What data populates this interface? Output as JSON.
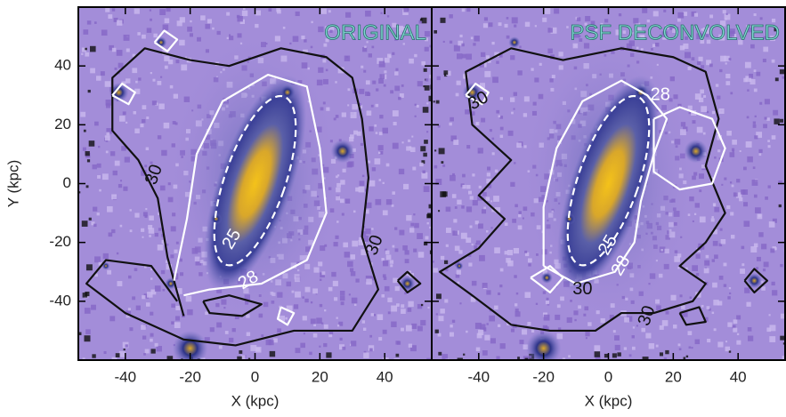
{
  "chart_data": [
    {
      "type": "image",
      "title": "ORIGINAL",
      "xlabel": "X (kpc)",
      "ylabel": "Y (kpc)",
      "xlim": [
        -54.5,
        54.5
      ],
      "ylim": [
        -60,
        60
      ],
      "xticks": [
        -40,
        -20,
        0,
        20,
        40
      ],
      "yticks": [
        -40,
        -20,
        0,
        20,
        40
      ],
      "annotations": [
        "30",
        "25",
        "28",
        "30"
      ]
    },
    {
      "type": "image",
      "title": "PSF DECONVOLVED",
      "xlabel": "X (kpc)",
      "xlim": [
        -54.5,
        54.5
      ],
      "ylim": [
        -60,
        60
      ],
      "xticks": [
        -40,
        -20,
        0,
        20,
        40
      ],
      "yticks": [
        -40,
        -20,
        0,
        20,
        40
      ],
      "annotations": [
        "30",
        "25",
        "28",
        "30",
        "28",
        "30"
      ]
    }
  ]
}
